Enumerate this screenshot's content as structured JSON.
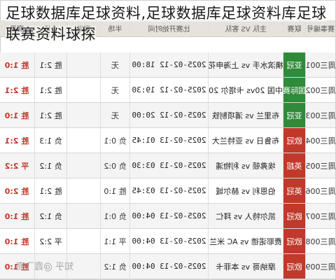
{
  "page": {
    "title": "足球数据库足球资料,足球数据库足球资料库足球联赛资料球探"
  },
  "table": {
    "headers": [
      "赛事编号",
      "联赛",
      "主队 VS 客队",
      "比赛开始时间",
      "半场",
      "赛果",
      "全场",
      "赛果"
    ],
    "rows": [
      {
        "id": "周三001",
        "league": "亚冠",
        "league_color": "#2f8a3a",
        "teams": "横滨水手 vs 上海申花",
        "time": "2025-02-12 18:00",
        "ht": "无",
        "res": "",
        "ft": "胜 2:1",
        "ft2": "胜 1:0"
      },
      {
        "id": "周三002",
        "league": "国际赛",
        "league_color": "#2f8a3a",
        "teams": "中国 20vs 卡塔尔 20",
        "time": "2025-02-12 19:30",
        "ht": "无",
        "res": "",
        "ft": "胜 2:1",
        "ft2": "胜 2:1"
      },
      {
        "id": "周三003",
        "league": "亚冠",
        "league_color": "#2f8a3a",
        "teams": "布里兰 vs 浦项制铁",
        "time": "2025-02-12 20:00",
        "ht": "无",
        "res": "",
        "ft": "胜 2:1",
        "ft2": "胜 1:0"
      },
      {
        "id": "周三004",
        "league": "欧冠",
        "league_color": "#c0392b",
        "teams": "布鲁日 vs 亚特兰大",
        "time": "2025-02-13 01:45",
        "ht": "负 0:1",
        "res": "",
        "ft": "负 1:3",
        "ft2": "胜 2:1"
      },
      {
        "id": "周三005",
        "league": "英超",
        "league_color": "#c0392b",
        "teams": "埃弗顿 vs 利物浦",
        "time": "2025-02-13 03:30",
        "ht": "负 0:2",
        "res": "",
        "ft": "负 1:2",
        "ft2": "平 2:2"
      },
      {
        "id": "周三006",
        "league": "英冠",
        "league_color": "#c0392b",
        "teams": "伯恩利 vs 赫尔城",
        "time": "2025-02-13 03:45",
        "ht": "胜 1:0",
        "res": "",
        "ft": "胜 2:1",
        "ft2": "胜 2:0"
      },
      {
        "id": "周三007",
        "league": "欧冠",
        "league_color": "#c0392b",
        "teams": "凯尔特人 vs 拜仁",
        "time": "2025-02-13 04:00",
        "ht": "负 0:1",
        "res": "",
        "ft": "负 1:2",
        "ft2": "胜 1:0"
      },
      {
        "id": "周三008",
        "league": "欧冠",
        "league_color": "#c0392b",
        "teams": "费耶诺德 vs AC 米兰",
        "time": "2025-02-13 04:00",
        "ht": "平 1:1",
        "res": "",
        "ft": "平 2:2",
        "ft2": "胜 1:0"
      },
      {
        "id": "周三009",
        "league": "欧冠",
        "league_color": "#c0392b",
        "teams": "摩纳哥 vs 本菲卡",
        "time": "2025-02-13 04:00",
        "ht": "负 1:2",
        "res": "",
        "ft": "",
        "ft2": "胜 1:0"
      }
    ]
  },
  "watermark": "知乎 @霞飞高"
}
